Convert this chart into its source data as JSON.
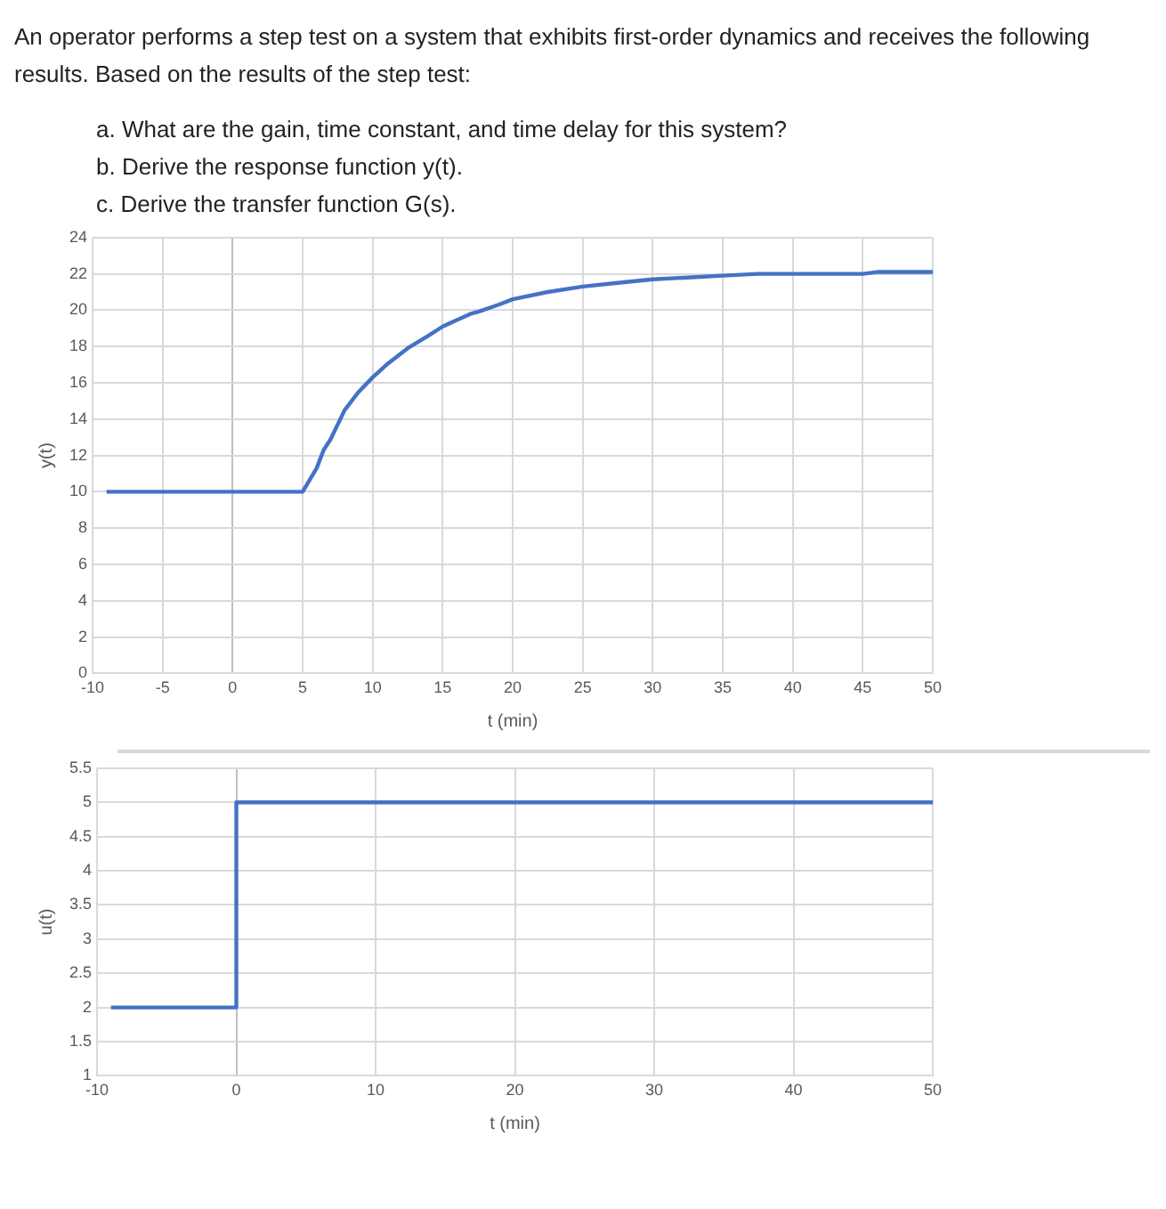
{
  "chart_data": [
    {
      "type": "line",
      "title": "An operator performs a step test on a system that exhibits first-order dynamics and receives the following results. Based on the results of the step test:",
      "annotations": [
        "a.  What are the gain, time constant, and time delay for this system?",
        "b.  Derive the response function y(t).",
        "c.  Derive the transfer function G(s)."
      ],
      "xlabel": "t (min)",
      "ylabel": "y(t)",
      "x": [
        -9,
        5,
        6,
        6.5,
        7,
        8,
        9,
        10,
        11,
        12.5,
        14,
        15,
        17,
        17.5,
        19,
        20,
        22.5,
        25,
        27.5,
        30,
        32.5,
        35,
        37.5,
        40,
        45,
        46,
        50
      ],
      "series": [
        {
          "color": "#4472c4",
          "values": [
            10,
            10,
            11.3,
            12.3,
            12.9,
            14.5,
            15.5,
            16.3,
            17,
            17.9,
            18.6,
            19.1,
            19.8,
            19.9,
            20.3,
            20.6,
            21.0,
            21.3,
            21.5,
            21.7,
            21.8,
            21.9,
            22.0,
            22.0,
            22.0,
            22.1,
            22.1
          ]
        }
      ],
      "xlim": [
        -10,
        50
      ],
      "xticks": [
        -10,
        -5,
        0,
        5,
        10,
        15,
        20,
        25,
        30,
        35,
        40,
        45,
        50
      ],
      "ylim": [
        0,
        24
      ],
      "yticks": [
        0,
        2,
        4,
        6,
        8,
        10,
        12,
        14,
        16,
        18,
        20,
        22,
        24
      ],
      "grid": true,
      "marker": "none",
      "line_style": "solid"
    },
    {
      "type": "step",
      "xlabel": "t (min)",
      "ylabel": "u(t)",
      "x": [
        -9,
        0,
        50
      ],
      "series": [
        {
          "color": "#4472c4",
          "values": [
            2,
            5,
            5
          ]
        }
      ],
      "xlim": [
        -10,
        50
      ],
      "xticks": [
        -10,
        0,
        10,
        20,
        30,
        40,
        50
      ],
      "ylim": [
        1,
        5.5
      ],
      "yticks": [
        1,
        1.5,
        2,
        2.5,
        3,
        3.5,
        4,
        4.5,
        5,
        5.5
      ],
      "grid": true,
      "marker": "none",
      "line_style": "solid"
    }
  ]
}
